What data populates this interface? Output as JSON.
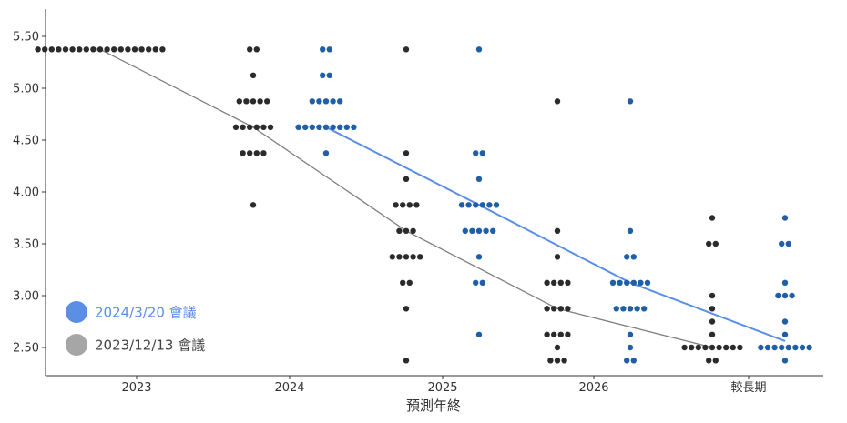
{
  "chart_data": {
    "type": "scatter",
    "title": "",
    "xlabel": "預測年終",
    "ylabel": "",
    "categories": [
      "2023",
      "2024",
      "2025",
      "2026",
      "較長期"
    ],
    "yticks": [
      "5.50",
      "5.00",
      "4.50",
      "4.00",
      "3.50",
      "3.00",
      "2.50"
    ],
    "ylim": [
      2.1,
      5.6
    ],
    "grid": false,
    "legend_position": "bottom-left",
    "series": [
      {
        "name": "2024/3/20 會議",
        "color": "#1f5fa8",
        "line_color": "#5b8fe6",
        "legend_color": "#5b8fe6",
        "dots": [
          [],
          [
            {
              "y": 5.375,
              "count": 2
            },
            {
              "y": 5.125,
              "count": 2
            },
            {
              "y": 4.875,
              "count": 5
            },
            {
              "y": 4.625,
              "count": 9
            },
            {
              "y": 4.375,
              "count": 1
            }
          ],
          [
            {
              "y": 5.375,
              "count": 1
            },
            {
              "y": 4.375,
              "count": 2
            },
            {
              "y": 4.125,
              "count": 1
            },
            {
              "y": 3.875,
              "count": 6
            },
            {
              "y": 3.625,
              "count": 5
            },
            {
              "y": 3.375,
              "count": 1
            },
            {
              "y": 3.125,
              "count": 2
            },
            {
              "y": 2.625,
              "count": 1
            }
          ],
          [
            {
              "y": 4.875,
              "count": 1
            },
            {
              "y": 3.625,
              "count": 1
            },
            {
              "y": 3.375,
              "count": 2
            },
            {
              "y": 3.125,
              "count": 6
            },
            {
              "y": 2.875,
              "count": 5
            },
            {
              "y": 2.625,
              "count": 1
            },
            {
              "y": 2.5,
              "count": 1
            },
            {
              "y": 2.375,
              "count": 2
            }
          ],
          [
            {
              "y": 3.75,
              "count": 1
            },
            {
              "y": 3.5,
              "count": 2
            },
            {
              "y": 3.125,
              "count": 1
            },
            {
              "y": 3.0,
              "count": 3
            },
            {
              "y": 2.75,
              "count": 1
            },
            {
              "y": 2.625,
              "count": 1
            },
            {
              "y": 2.5,
              "count": 8
            },
            {
              "y": 2.375,
              "count": 1
            }
          ]
        ],
        "median": [
          null,
          4.625,
          3.875,
          3.125,
          2.5625
        ]
      },
      {
        "name": "2023/12/13 會議",
        "color": "#2b2b2b",
        "line_color": "#7f7f7f",
        "legend_color": "#a6a6a6",
        "dots": [
          [
            {
              "y": 5.375,
              "count": 19
            }
          ],
          [
            {
              "y": 5.375,
              "count": 2
            },
            {
              "y": 5.125,
              "count": 1
            },
            {
              "y": 4.875,
              "count": 5
            },
            {
              "y": 4.625,
              "count": 6
            },
            {
              "y": 4.375,
              "count": 4
            },
            {
              "y": 3.875,
              "count": 1
            }
          ],
          [
            {
              "y": 5.375,
              "count": 1
            },
            {
              "y": 4.375,
              "count": 1
            },
            {
              "y": 4.125,
              "count": 1
            },
            {
              "y": 3.875,
              "count": 4
            },
            {
              "y": 3.625,
              "count": 3
            },
            {
              "y": 3.375,
              "count": 5
            },
            {
              "y": 3.125,
              "count": 2
            },
            {
              "y": 2.875,
              "count": 1
            },
            {
              "y": 2.375,
              "count": 1
            }
          ],
          [
            {
              "y": 4.875,
              "count": 1
            },
            {
              "y": 3.625,
              "count": 1
            },
            {
              "y": 3.375,
              "count": 1
            },
            {
              "y": 3.125,
              "count": 4
            },
            {
              "y": 2.875,
              "count": 4
            },
            {
              "y": 2.625,
              "count": 4
            },
            {
              "y": 2.5,
              "count": 1
            },
            {
              "y": 2.375,
              "count": 3
            }
          ],
          [
            {
              "y": 3.75,
              "count": 1
            },
            {
              "y": 3.5,
              "count": 2
            },
            {
              "y": 3.0,
              "count": 1
            },
            {
              "y": 2.875,
              "count": 1
            },
            {
              "y": 2.75,
              "count": 1
            },
            {
              "y": 2.625,
              "count": 1
            },
            {
              "y": 2.5,
              "count": 9
            },
            {
              "y": 2.375,
              "count": 2
            }
          ]
        ],
        "median": [
          5.375,
          4.625,
          3.625,
          2.875,
          2.5
        ]
      }
    ]
  }
}
